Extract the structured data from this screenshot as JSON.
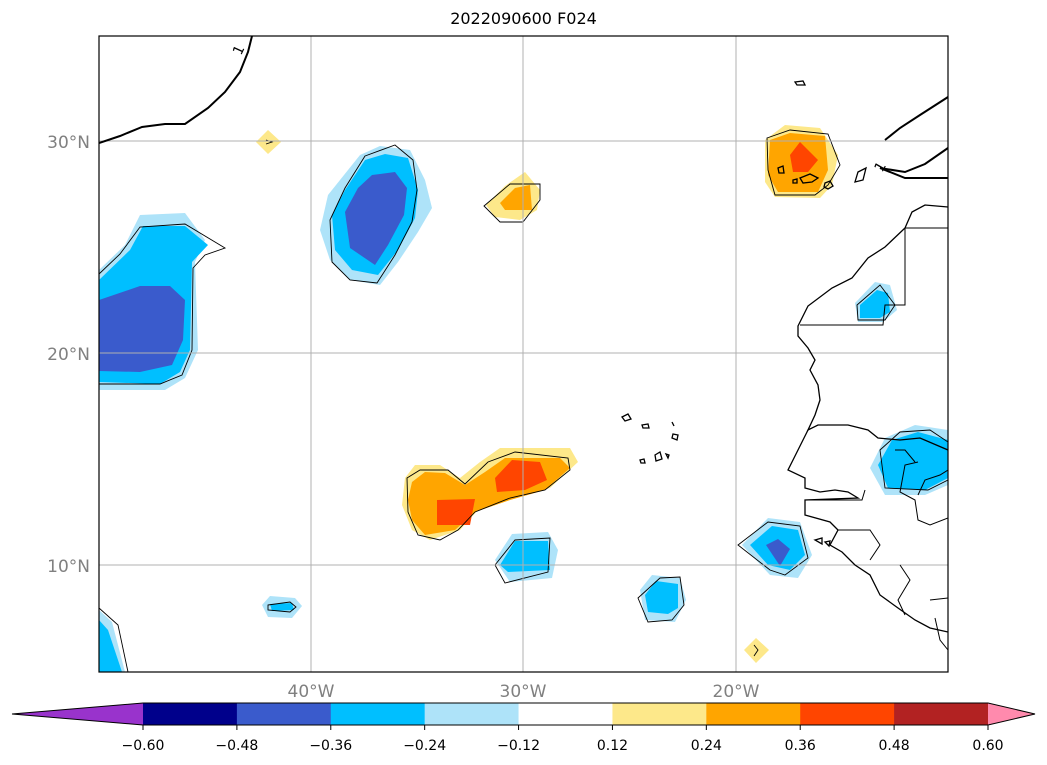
{
  "title": "2022090600 F024",
  "map": {
    "lat_labels": [
      "30°N",
      "20°N",
      "10°N"
    ],
    "lon_labels": [
      "40°W",
      "30°W",
      "20°W"
    ],
    "coastline_label": "1",
    "contour_level_label": "1"
  },
  "colorbar": {
    "levels": [
      "−0.60",
      "−0.48",
      "−0.36",
      "−0.24",
      "−0.12",
      "0.12",
      "0.24",
      "0.36",
      "0.48",
      "0.60"
    ],
    "colors": [
      "#9933cc",
      "#00008b",
      "#3a5bcc",
      "#00bfff",
      "#aee3f9",
      "#ffffff",
      "#fde88a",
      "#ffa500",
      "#ff4500",
      "#b22222",
      "#ff8aad"
    ],
    "extend": "both"
  }
}
